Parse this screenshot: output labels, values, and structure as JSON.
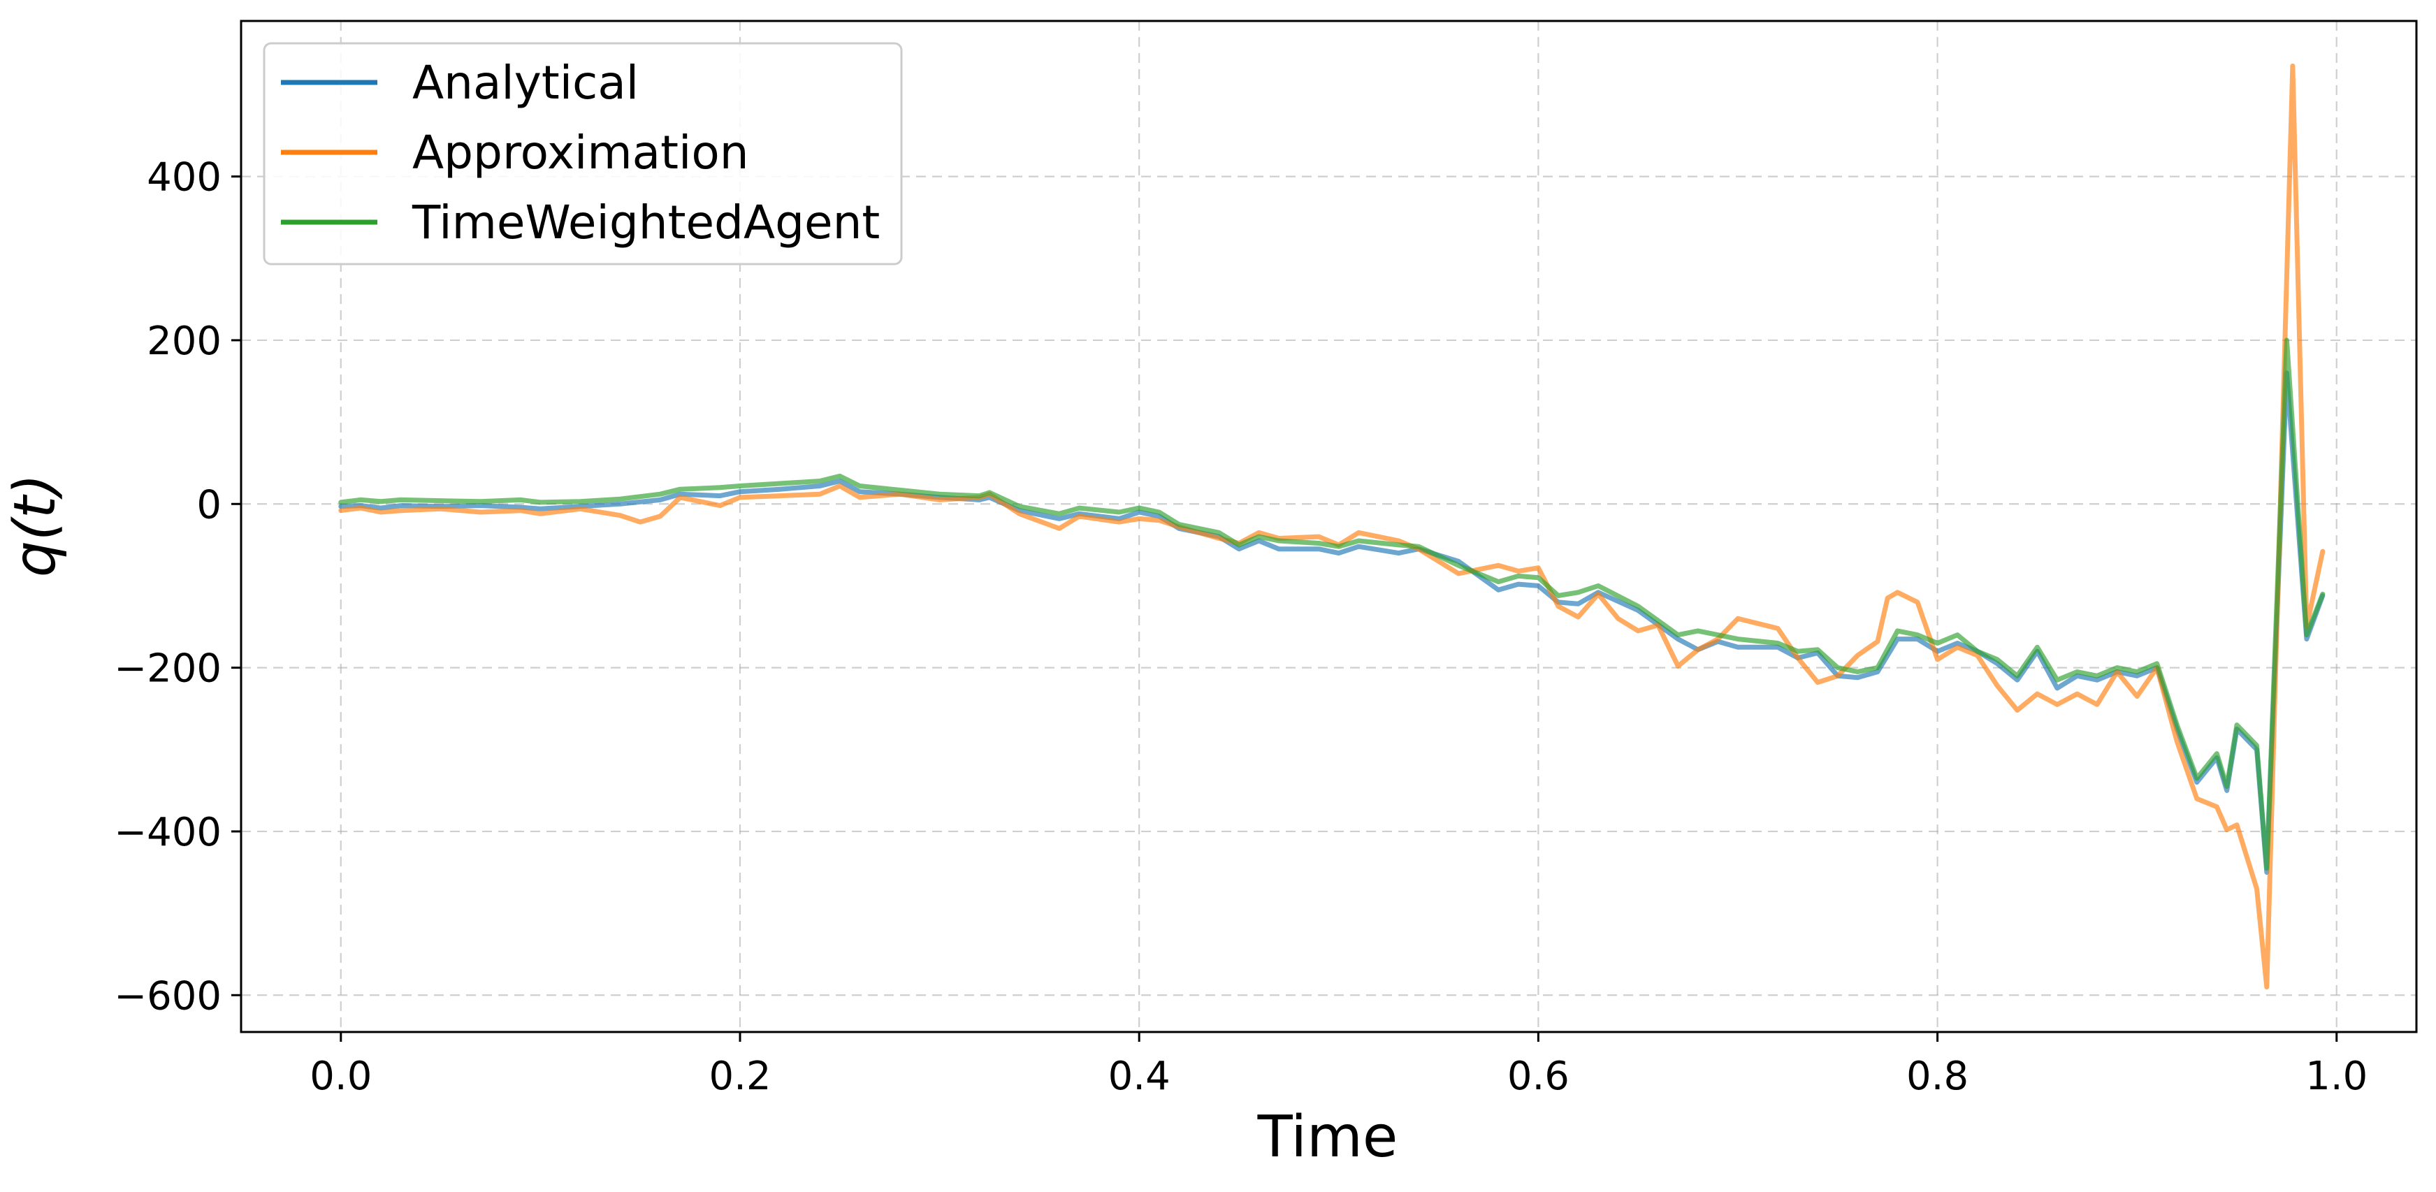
{
  "chart_data": {
    "type": "line",
    "xlabel": "Time",
    "ylabel": "q(t)",
    "xlim": [
      -0.05,
      1.04
    ],
    "ylim": [
      -645,
      590
    ],
    "xticks": [
      0.0,
      0.2,
      0.4,
      0.6,
      0.8,
      1.0
    ],
    "xtick_labels": [
      "0.0",
      "0.2",
      "0.4",
      "0.6",
      "0.8",
      "1.0"
    ],
    "yticks": [
      -600,
      -400,
      -200,
      0,
      200,
      400
    ],
    "ytick_labels": [
      "−600",
      "−400",
      "−200",
      "0",
      "200",
      "400"
    ],
    "grid": true,
    "legend_position": "upper-left",
    "series": [
      {
        "name": "Analytical",
        "color": "#1f77b4",
        "points": [
          [
            0,
            -3
          ],
          [
            0.01,
            -2
          ],
          [
            0.02,
            -5
          ],
          [
            0.03,
            -2
          ],
          [
            0.05,
            -3
          ],
          [
            0.07,
            -2
          ],
          [
            0.09,
            -4
          ],
          [
            0.1,
            -6
          ],
          [
            0.12,
            -3
          ],
          [
            0.14,
            0
          ],
          [
            0.16,
            5
          ],
          [
            0.17,
            12
          ],
          [
            0.19,
            10
          ],
          [
            0.2,
            15
          ],
          [
            0.22,
            18
          ],
          [
            0.24,
            22
          ],
          [
            0.25,
            28
          ],
          [
            0.26,
            15
          ],
          [
            0.28,
            12
          ],
          [
            0.3,
            8
          ],
          [
            0.32,
            5
          ],
          [
            0.325,
            8
          ],
          [
            0.34,
            -8
          ],
          [
            0.36,
            -18
          ],
          [
            0.37,
            -12
          ],
          [
            0.39,
            -18
          ],
          [
            0.4,
            -10
          ],
          [
            0.41,
            -15
          ],
          [
            0.42,
            -30
          ],
          [
            0.44,
            -40
          ],
          [
            0.45,
            -55
          ],
          [
            0.46,
            -45
          ],
          [
            0.47,
            -55
          ],
          [
            0.49,
            -55
          ],
          [
            0.5,
            -60
          ],
          [
            0.51,
            -52
          ],
          [
            0.53,
            -60
          ],
          [
            0.54,
            -55
          ],
          [
            0.56,
            -70
          ],
          [
            0.58,
            -105
          ],
          [
            0.59,
            -98
          ],
          [
            0.6,
            -100
          ],
          [
            0.61,
            -120
          ],
          [
            0.62,
            -122
          ],
          [
            0.63,
            -108
          ],
          [
            0.65,
            -130
          ],
          [
            0.67,
            -165
          ],
          [
            0.68,
            -178
          ],
          [
            0.69,
            -168
          ],
          [
            0.7,
            -175
          ],
          [
            0.72,
            -175
          ],
          [
            0.73,
            -188
          ],
          [
            0.74,
            -182
          ],
          [
            0.75,
            -210
          ],
          [
            0.76,
            -212
          ],
          [
            0.77,
            -205
          ],
          [
            0.78,
            -165
          ],
          [
            0.79,
            -165
          ],
          [
            0.8,
            -180
          ],
          [
            0.81,
            -170
          ],
          [
            0.82,
            -180
          ],
          [
            0.83,
            -195
          ],
          [
            0.84,
            -215
          ],
          [
            0.85,
            -180
          ],
          [
            0.86,
            -225
          ],
          [
            0.87,
            -210
          ],
          [
            0.88,
            -215
          ],
          [
            0.89,
            -205
          ],
          [
            0.9,
            -210
          ],
          [
            0.91,
            -200
          ],
          [
            0.92,
            -275
          ],
          [
            0.93,
            -340
          ],
          [
            0.94,
            -310
          ],
          [
            0.945,
            -350
          ],
          [
            0.95,
            -275
          ],
          [
            0.96,
            -300
          ],
          [
            0.965,
            -450
          ],
          [
            0.975,
            160
          ],
          [
            0.985,
            -165
          ],
          [
            0.993,
            -112
          ]
        ]
      },
      {
        "name": "Approximation",
        "color": "#ff7f0e",
        "points": [
          [
            0,
            -8
          ],
          [
            0.01,
            -5
          ],
          [
            0.02,
            -10
          ],
          [
            0.03,
            -8
          ],
          [
            0.05,
            -6
          ],
          [
            0.07,
            -10
          ],
          [
            0.09,
            -8
          ],
          [
            0.1,
            -12
          ],
          [
            0.12,
            -6
          ],
          [
            0.14,
            -14
          ],
          [
            0.15,
            -22
          ],
          [
            0.16,
            -15
          ],
          [
            0.17,
            8
          ],
          [
            0.19,
            -2
          ],
          [
            0.2,
            8
          ],
          [
            0.22,
            10
          ],
          [
            0.24,
            12
          ],
          [
            0.25,
            22
          ],
          [
            0.26,
            8
          ],
          [
            0.28,
            12
          ],
          [
            0.3,
            5
          ],
          [
            0.32,
            8
          ],
          [
            0.325,
            12
          ],
          [
            0.34,
            -12
          ],
          [
            0.36,
            -30
          ],
          [
            0.37,
            -15
          ],
          [
            0.39,
            -22
          ],
          [
            0.4,
            -18
          ],
          [
            0.41,
            -20
          ],
          [
            0.42,
            -28
          ],
          [
            0.44,
            -42
          ],
          [
            0.45,
            -48
          ],
          [
            0.46,
            -35
          ],
          [
            0.47,
            -42
          ],
          [
            0.49,
            -40
          ],
          [
            0.5,
            -50
          ],
          [
            0.51,
            -35
          ],
          [
            0.53,
            -45
          ],
          [
            0.54,
            -55
          ],
          [
            0.56,
            -85
          ],
          [
            0.58,
            -75
          ],
          [
            0.59,
            -82
          ],
          [
            0.6,
            -78
          ],
          [
            0.61,
            -125
          ],
          [
            0.62,
            -138
          ],
          [
            0.63,
            -110
          ],
          [
            0.64,
            -140
          ],
          [
            0.65,
            -155
          ],
          [
            0.66,
            -148
          ],
          [
            0.67,
            -198
          ],
          [
            0.68,
            -178
          ],
          [
            0.69,
            -165
          ],
          [
            0.7,
            -140
          ],
          [
            0.72,
            -152
          ],
          [
            0.73,
            -188
          ],
          [
            0.74,
            -218
          ],
          [
            0.75,
            -210
          ],
          [
            0.76,
            -185
          ],
          [
            0.77,
            -168
          ],
          [
            0.775,
            -115
          ],
          [
            0.78,
            -108
          ],
          [
            0.79,
            -120
          ],
          [
            0.8,
            -190
          ],
          [
            0.81,
            -175
          ],
          [
            0.82,
            -185
          ],
          [
            0.83,
            -222
          ],
          [
            0.84,
            -252
          ],
          [
            0.85,
            -232
          ],
          [
            0.86,
            -245
          ],
          [
            0.87,
            -232
          ],
          [
            0.88,
            -245
          ],
          [
            0.89,
            -205
          ],
          [
            0.9,
            -235
          ],
          [
            0.91,
            -200
          ],
          [
            0.92,
            -290
          ],
          [
            0.93,
            -360
          ],
          [
            0.94,
            -370
          ],
          [
            0.945,
            -398
          ],
          [
            0.95,
            -392
          ],
          [
            0.96,
            -470
          ],
          [
            0.965,
            -590
          ],
          [
            0.978,
            535
          ],
          [
            0.985,
            -150
          ],
          [
            0.993,
            -58
          ]
        ]
      },
      {
        "name": "TimeWeightedAgent",
        "color": "#2ca02c",
        "points": [
          [
            0,
            2
          ],
          [
            0.01,
            5
          ],
          [
            0.02,
            3
          ],
          [
            0.03,
            5
          ],
          [
            0.05,
            4
          ],
          [
            0.07,
            3
          ],
          [
            0.09,
            5
          ],
          [
            0.1,
            2
          ],
          [
            0.12,
            3
          ],
          [
            0.14,
            6
          ],
          [
            0.16,
            12
          ],
          [
            0.17,
            18
          ],
          [
            0.19,
            20
          ],
          [
            0.2,
            22
          ],
          [
            0.22,
            25
          ],
          [
            0.24,
            28
          ],
          [
            0.25,
            34
          ],
          [
            0.26,
            22
          ],
          [
            0.28,
            17
          ],
          [
            0.3,
            12
          ],
          [
            0.32,
            10
          ],
          [
            0.325,
            14
          ],
          [
            0.34,
            -3
          ],
          [
            0.36,
            -12
          ],
          [
            0.37,
            -5
          ],
          [
            0.39,
            -10
          ],
          [
            0.4,
            -5
          ],
          [
            0.41,
            -10
          ],
          [
            0.42,
            -25
          ],
          [
            0.44,
            -35
          ],
          [
            0.45,
            -50
          ],
          [
            0.46,
            -40
          ],
          [
            0.47,
            -45
          ],
          [
            0.49,
            -48
          ],
          [
            0.5,
            -52
          ],
          [
            0.51,
            -45
          ],
          [
            0.53,
            -50
          ],
          [
            0.54,
            -52
          ],
          [
            0.56,
            -75
          ],
          [
            0.58,
            -95
          ],
          [
            0.59,
            -88
          ],
          [
            0.6,
            -90
          ],
          [
            0.61,
            -112
          ],
          [
            0.62,
            -108
          ],
          [
            0.63,
            -100
          ],
          [
            0.65,
            -125
          ],
          [
            0.67,
            -160
          ],
          [
            0.68,
            -155
          ],
          [
            0.69,
            -160
          ],
          [
            0.7,
            -165
          ],
          [
            0.72,
            -170
          ],
          [
            0.73,
            -180
          ],
          [
            0.74,
            -178
          ],
          [
            0.75,
            -200
          ],
          [
            0.76,
            -205
          ],
          [
            0.77,
            -200
          ],
          [
            0.78,
            -155
          ],
          [
            0.79,
            -160
          ],
          [
            0.8,
            -170
          ],
          [
            0.81,
            -160
          ],
          [
            0.82,
            -180
          ],
          [
            0.83,
            -190
          ],
          [
            0.84,
            -210
          ],
          [
            0.85,
            -175
          ],
          [
            0.86,
            -215
          ],
          [
            0.87,
            -205
          ],
          [
            0.88,
            -210
          ],
          [
            0.89,
            -200
          ],
          [
            0.9,
            -205
          ],
          [
            0.91,
            -195
          ],
          [
            0.92,
            -270
          ],
          [
            0.93,
            -335
          ],
          [
            0.94,
            -305
          ],
          [
            0.945,
            -345
          ],
          [
            0.95,
            -270
          ],
          [
            0.96,
            -295
          ],
          [
            0.965,
            -445
          ],
          [
            0.975,
            200
          ],
          [
            0.985,
            -160
          ],
          [
            0.993,
            -110
          ]
        ]
      }
    ]
  }
}
